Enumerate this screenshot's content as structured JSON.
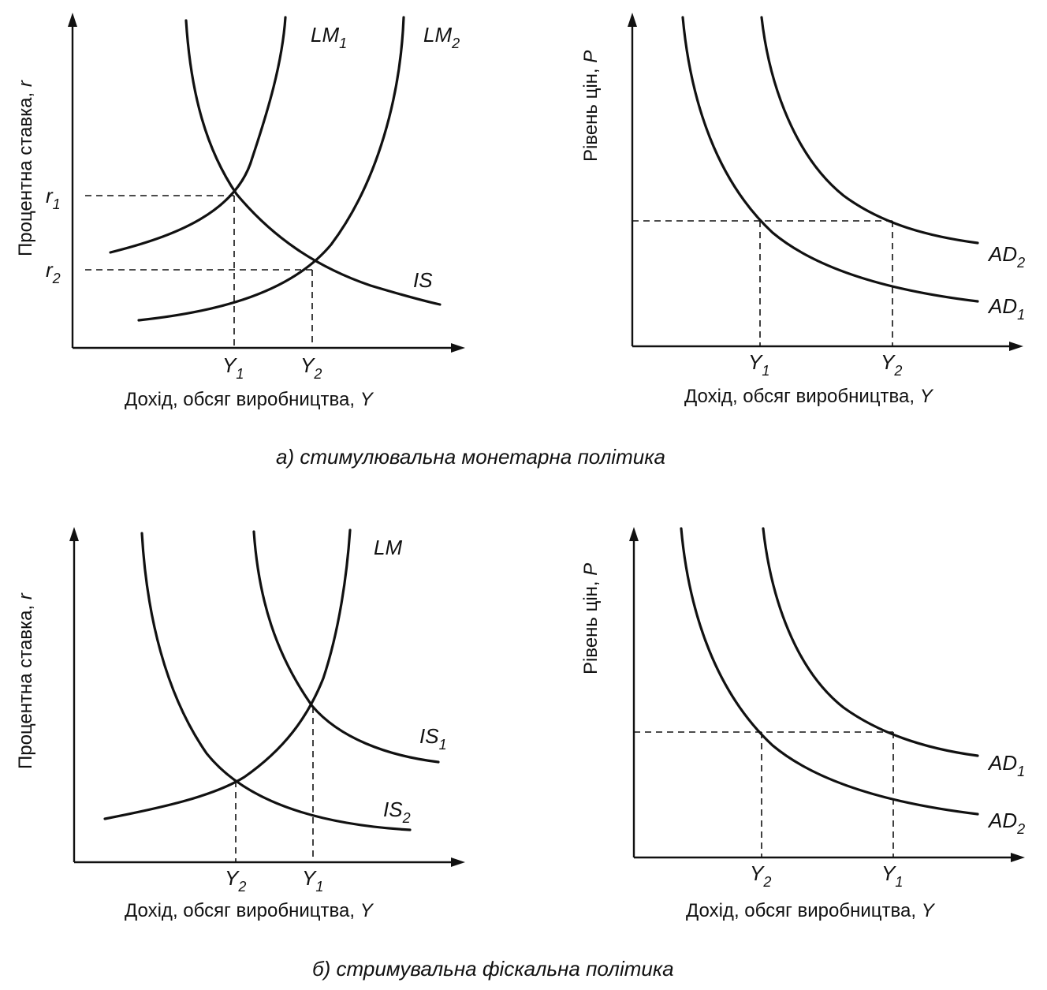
{
  "captions": {
    "a": "а) стимулювальна монетарна політика",
    "b": "б) стримувальна фіскальна політика"
  },
  "axes": {
    "x": "Дохід, обсяг виробництва,",
    "x_var": "Y",
    "y_rate": "Процентна ставка,",
    "y_rate_var": "r",
    "y_price": "Рівень цін,",
    "y_price_var": "P"
  },
  "panels": {
    "a_left": {
      "curves": [
        {
          "base": "LM",
          "sub": "1"
        },
        {
          "base": "LM",
          "sub": "2"
        },
        {
          "base": "IS",
          "sub": ""
        }
      ],
      "y_ticks": [
        {
          "base": "r",
          "sub": "1"
        },
        {
          "base": "r",
          "sub": "2"
        }
      ],
      "x_ticks": [
        {
          "base": "Y",
          "sub": "1"
        },
        {
          "base": "Y",
          "sub": "2"
        }
      ]
    },
    "a_right": {
      "curves": [
        {
          "base": "AD",
          "sub": "2"
        },
        {
          "base": "AD",
          "sub": "1"
        }
      ],
      "x_ticks": [
        {
          "base": "Y",
          "sub": "1"
        },
        {
          "base": "Y",
          "sub": "2"
        }
      ]
    },
    "b_left": {
      "curves": [
        {
          "base": "LM",
          "sub": ""
        },
        {
          "base": "IS",
          "sub": "1"
        },
        {
          "base": "IS",
          "sub": "2"
        }
      ],
      "x_ticks": [
        {
          "base": "Y",
          "sub": "2"
        },
        {
          "base": "Y",
          "sub": "1"
        }
      ]
    },
    "b_right": {
      "curves": [
        {
          "base": "AD",
          "sub": "1"
        },
        {
          "base": "AD",
          "sub": "2"
        }
      ],
      "x_ticks": [
        {
          "base": "Y",
          "sub": "2"
        },
        {
          "base": "Y",
          "sub": "1"
        }
      ]
    }
  }
}
